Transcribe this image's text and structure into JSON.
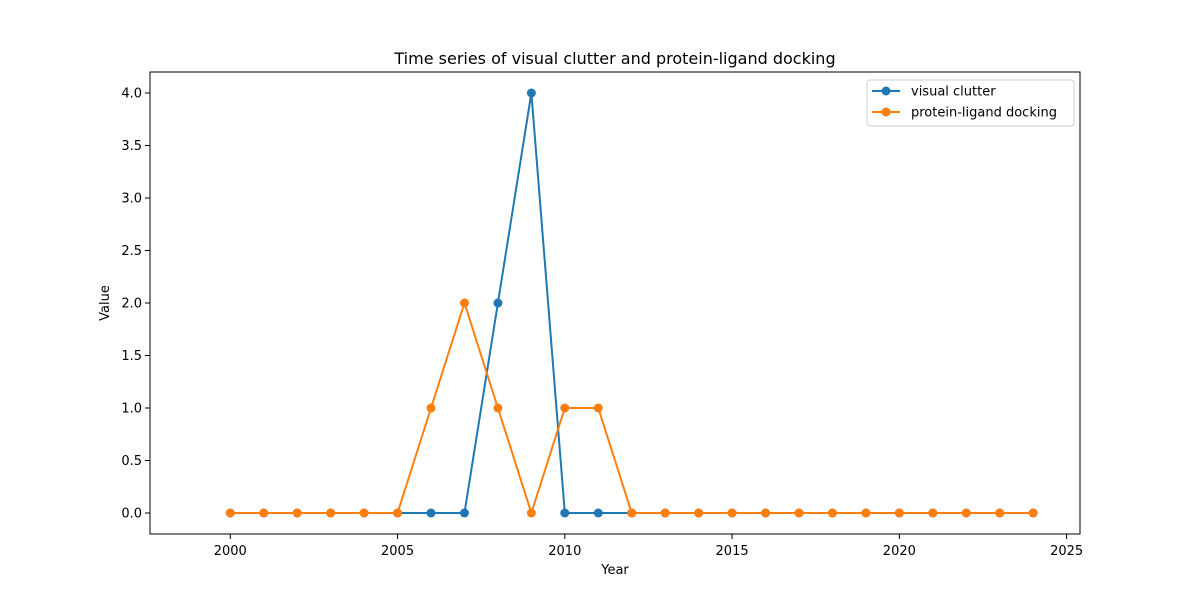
{
  "chart_data": {
    "type": "line",
    "title": "Time series of visual clutter and protein-ligand docking",
    "xlabel": "Year",
    "ylabel": "Value",
    "xlim": [
      1997.6,
      2025.4
    ],
    "ylim": [
      -0.2,
      4.2
    ],
    "xticks": [
      2000,
      2005,
      2010,
      2015,
      2020,
      2025
    ],
    "yticks": [
      0.0,
      0.5,
      1.0,
      1.5,
      2.0,
      2.5,
      3.0,
      3.5,
      4.0
    ],
    "ytick_labels": [
      "0.0",
      "0.5",
      "1.0",
      "1.5",
      "2.0",
      "2.5",
      "3.0",
      "3.5",
      "4.0"
    ],
    "x": [
      2000,
      2001,
      2002,
      2003,
      2004,
      2005,
      2006,
      2007,
      2008,
      2009,
      2010,
      2011,
      2012,
      2013,
      2014,
      2015,
      2016,
      2017,
      2018,
      2019,
      2020,
      2021,
      2022,
      2023,
      2024
    ],
    "series": [
      {
        "name": "visual clutter",
        "color": "#1f77b4",
        "values": [
          0,
          0,
          0,
          0,
          0,
          0,
          0,
          0,
          2,
          4,
          0,
          0,
          0,
          0,
          0,
          0,
          0,
          0,
          0,
          0,
          0,
          0,
          0,
          0,
          0
        ]
      },
      {
        "name": "protein-ligand docking",
        "color": "#ff7f0e",
        "values": [
          0,
          0,
          0,
          0,
          0,
          0,
          1,
          2,
          1,
          0,
          1,
          1,
          0,
          0,
          0,
          0,
          0,
          0,
          0,
          0,
          0,
          0,
          0,
          0,
          0
        ]
      }
    ],
    "grid": false,
    "legend_position": "top-right"
  }
}
